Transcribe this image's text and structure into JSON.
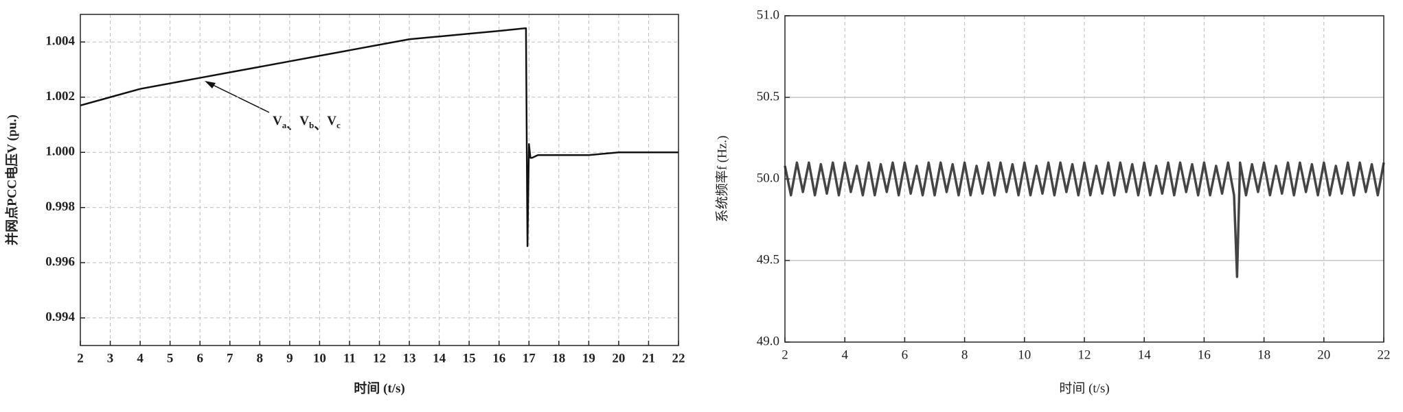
{
  "chart_data": [
    {
      "type": "line",
      "x_label": "时间 (t/s)",
      "y_label": "并网点PCC电压V (pu.)",
      "annotation": [
        {
          "base": "V",
          "sub": "a"
        },
        {
          "base": "V",
          "sub": "b"
        },
        {
          "base": "V",
          "sub": "c"
        }
      ],
      "annotation_separator": "、",
      "xlim": [
        2,
        22
      ],
      "xticks": [
        2,
        3,
        4,
        5,
        6,
        7,
        8,
        9,
        10,
        11,
        12,
        13,
        14,
        15,
        16,
        17,
        18,
        19,
        20,
        21,
        22
      ],
      "ylim": [
        0.993,
        1.005
      ],
      "yticks": [
        0.994,
        0.996,
        0.998,
        {
          "value": 1.0,
          "label": "1.000"
        },
        1.002,
        1.004
      ],
      "grid": "dashed-both",
      "series": [
        {
          "color": "#111111",
          "x": [
            2,
            3,
            4,
            5,
            6,
            7,
            8,
            9,
            10,
            11,
            12,
            13,
            14,
            15,
            16,
            16.9,
            16.95,
            17.0,
            17.05,
            17.1,
            17.3,
            17.5,
            18,
            19,
            20,
            21,
            22
          ],
          "values": [
            1.0017,
            1.002,
            1.0023,
            1.0025,
            1.0027,
            1.0029,
            1.0031,
            1.0033,
            1.0035,
            1.0037,
            1.0039,
            1.0041,
            1.0042,
            1.0043,
            1.0044,
            1.0045,
            0.9966,
            1.0003,
            0.9998,
            0.9998,
            0.9999,
            0.9999,
            0.9999,
            0.9999,
            1.0,
            1.0,
            1.0
          ]
        }
      ]
    },
    {
      "type": "line",
      "x_label": "时间 (t/s)",
      "y_label": "系统频率f (Hz.)",
      "xlim": [
        2,
        22
      ],
      "xticks": [
        2,
        4,
        6,
        8,
        10,
        12,
        14,
        16,
        18,
        20,
        22
      ],
      "ylim": [
        49,
        51
      ],
      "yticks": [
        {
          "value": 49,
          "label": "49.0"
        },
        49.5,
        {
          "value": 50,
          "label": "50.0"
        },
        50.5,
        {
          "value": 51,
          "label": "51.0"
        }
      ],
      "grid": "solid-y-dashed-x",
      "series": [
        {
          "color": "#444444",
          "x": [
            2,
            2.2,
            2.4,
            2.6,
            2.8,
            3,
            3.2,
            3.4,
            3.6,
            3.8,
            4,
            4.2,
            4.4,
            4.6,
            4.8,
            5,
            5.2,
            5.4,
            5.6,
            5.8,
            6,
            6.2,
            6.4,
            6.6,
            6.8,
            7,
            7.2,
            7.4,
            7.6,
            7.8,
            8,
            8.2,
            8.4,
            8.6,
            8.8,
            9,
            9.2,
            9.4,
            9.6,
            9.8,
            10,
            10.2,
            10.4,
            10.6,
            10.8,
            11,
            11.2,
            11.4,
            11.6,
            11.8,
            12,
            12.2,
            12.4,
            12.6,
            12.8,
            13,
            13.2,
            13.4,
            13.6,
            13.8,
            14,
            14.2,
            14.4,
            14.6,
            14.8,
            15,
            15.2,
            15.4,
            15.6,
            15.8,
            16,
            16.2,
            16.4,
            16.6,
            16.8,
            17,
            17.1,
            17.2,
            17.4,
            17.6,
            17.8,
            18,
            18.2,
            18.4,
            18.6,
            18.8,
            19,
            19.2,
            19.4,
            19.6,
            19.8,
            20,
            20.2,
            20.4,
            20.6,
            20.8,
            21,
            21.2,
            21.4,
            21.6,
            21.8,
            22
          ],
          "values": [
            50.08,
            49.9,
            50.1,
            49.92,
            50.1,
            49.9,
            50.09,
            49.91,
            50.1,
            49.9,
            50.1,
            49.92,
            50.08,
            49.9,
            50.1,
            49.9,
            50.09,
            49.92,
            50.1,
            49.9,
            50.1,
            49.91,
            50.08,
            49.9,
            50.1,
            49.9,
            50.1,
            49.92,
            50.09,
            49.9,
            50.1,
            49.9,
            50.08,
            49.91,
            50.1,
            49.9,
            50.1,
            49.92,
            50.09,
            49.9,
            50.1,
            49.9,
            50.08,
            49.91,
            50.1,
            49.9,
            50.1,
            49.92,
            50.09,
            49.9,
            50.1,
            49.9,
            50.08,
            49.91,
            50.1,
            49.9,
            50.1,
            49.92,
            50.09,
            49.9,
            50.1,
            49.9,
            50.08,
            49.91,
            50.1,
            49.9,
            50.1,
            49.92,
            50.09,
            49.9,
            50.1,
            49.9,
            50.08,
            49.91,
            50.1,
            49.9,
            49.4,
            50.1,
            49.9,
            50.09,
            49.92,
            50.1,
            49.9,
            50.08,
            49.91,
            50.1,
            49.9,
            50.1,
            49.92,
            50.09,
            49.9,
            50.1,
            49.9,
            50.08,
            49.91,
            50.1,
            49.9,
            50.1,
            49.92,
            50.09,
            49.9,
            50.1
          ]
        }
      ]
    }
  ]
}
